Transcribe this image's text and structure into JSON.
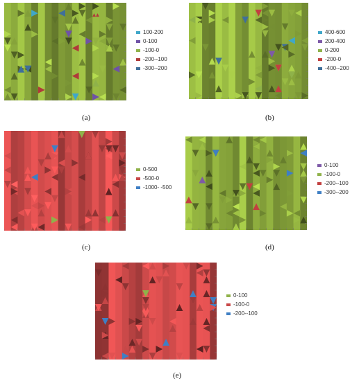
{
  "chart_data": [
    {
      "id": "a",
      "type": "heatmap",
      "caption": "(a)",
      "legend": [
        "100-200",
        "0-100",
        "-100-0",
        "-200--100",
        "-300--200"
      ],
      "colors": [
        "#3fa7c9",
        "#6f52a6",
        "#8fb24a",
        "#b03a3a",
        "#3f6f9a"
      ],
      "base_color": "#8aa83c"
    },
    {
      "id": "b",
      "type": "heatmap",
      "caption": "(b)",
      "legend": [
        "400-600",
        "200-400",
        "0-200",
        "-200-0",
        "-400--200"
      ],
      "colors": [
        "#3fa7c9",
        "#7e5aa8",
        "#8fb24a",
        "#c24040",
        "#3f6f9a"
      ],
      "base_color": "#8aa83c"
    },
    {
      "id": "c",
      "type": "heatmap",
      "caption": "(c)",
      "legend": [
        "0-500",
        "-500-0",
        "-1000- -500"
      ],
      "colors": [
        "#8fb24a",
        "#c84848",
        "#3f7fc4"
      ],
      "base_color": "#c84848"
    },
    {
      "id": "d",
      "type": "heatmap",
      "caption": "(d)",
      "legend": [
        "0-100",
        "-100-0",
        "-200--100",
        "-300--200"
      ],
      "colors": [
        "#7e5aa8",
        "#8fb24a",
        "#c24040",
        "#3f7fc4"
      ],
      "base_color": "#8aa83c"
    },
    {
      "id": "e",
      "type": "heatmap",
      "caption": "(e)",
      "legend": [
        "0-100",
        "-100-0",
        "-200--100"
      ],
      "colors": [
        "#8fb24a",
        "#c84848",
        "#3f7fc4"
      ],
      "base_color": "#c84848"
    }
  ]
}
